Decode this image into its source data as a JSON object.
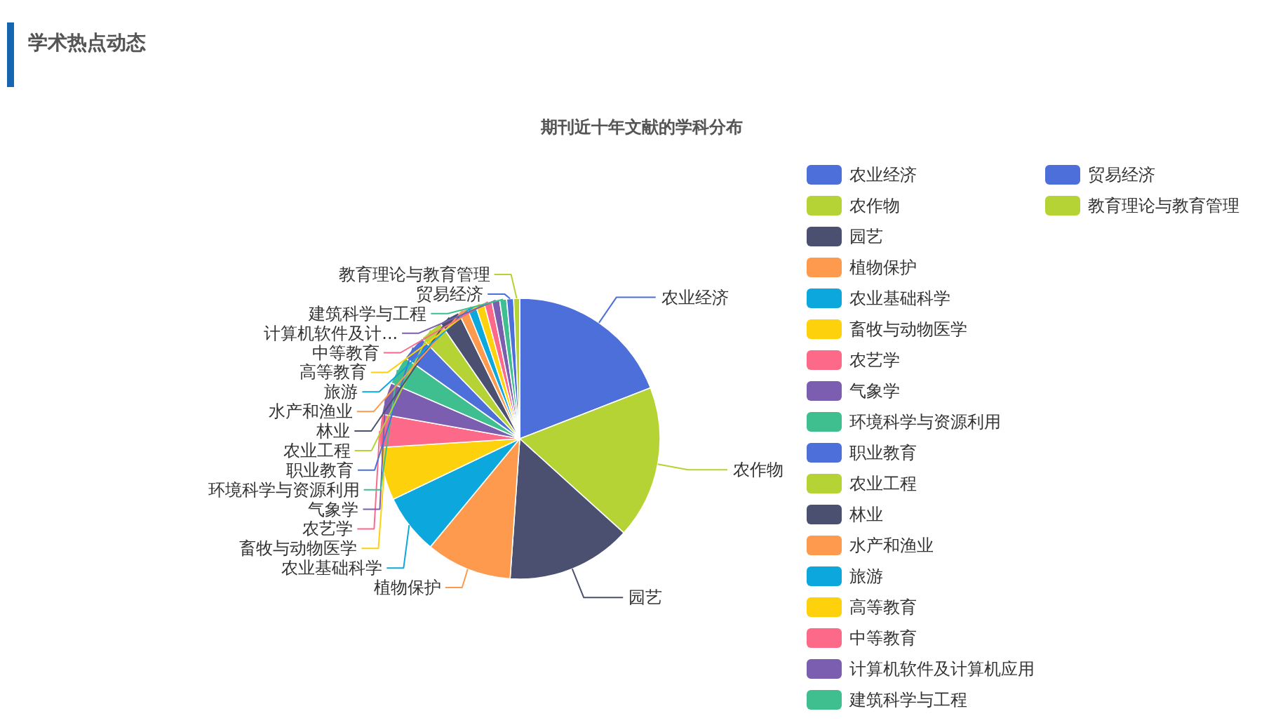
{
  "chart_data": {
    "type": "pie",
    "title": "期刊近十年文献的学科分布",
    "annotations": [
      "学术热点动态",
      {
        "text": "计算机软件及计...",
        "x": "计算机软件及计算机应用"
      }
    ],
    "legend": "right",
    "categories": [
      "农业经济",
      "农作物",
      "园艺",
      "植物保护",
      "农业基础科学",
      "畜牧与动物医学",
      "农艺学",
      "气象学",
      "环境科学与资源利用",
      "职业教育",
      "农业工程",
      "林业",
      "水产和渔业",
      "旅游",
      "高等教育",
      "中等教育",
      "计算机软件及计算机应用",
      "建筑科学与工程",
      "贸易经济",
      "教育理论与教育管理"
    ],
    "values": [
      19.1,
      17.6,
      14.4,
      9.9,
      6.9,
      6.1,
      3.8,
      3.7,
      3.3,
      2.9,
      2.7,
      2.4,
      1.1,
      1.0,
      1.0,
      0.9,
      0.9,
      0.8,
      0.8,
      0.7
    ],
    "colors": [
      "#4d6fd9",
      "#b5d334",
      "#4b5070",
      "#fe9a4e",
      "#0ca8dd",
      "#fdd20c",
      "#fc6989",
      "#7b5eaf",
      "#3fbf8f",
      "#4d6fd9",
      "#b5d334",
      "#4b5070",
      "#fe9a4e",
      "#0ca8dd",
      "#fdd20c",
      "#fc6989",
      "#7b5eaf",
      "#3fbf8f",
      "#4d6fd9",
      "#b5d334"
    ]
  }
}
